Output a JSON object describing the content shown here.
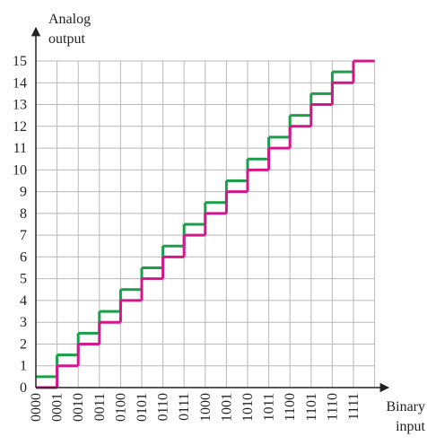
{
  "chart_data": {
    "type": "step",
    "y_label": [
      "Analog",
      "output"
    ],
    "x_label": [
      "Binary",
      "input"
    ],
    "categories": [
      "0000",
      "0001",
      "0010",
      "0011",
      "0100",
      "0101",
      "0110",
      "0111",
      "1000",
      "1001",
      "1010",
      "1011",
      "1100",
      "1101",
      "1110",
      "1111"
    ],
    "series": [
      {
        "color": "#1a9e4a",
        "values": [
          0.5,
          1.5,
          2.5,
          3.5,
          4.5,
          5.5,
          6.5,
          7.5,
          8.5,
          9.5,
          10.5,
          11.5,
          12.5,
          13.5,
          14.5,
          15
        ]
      },
      {
        "color": "#d4168c",
        "values": [
          0,
          1,
          2,
          3,
          4,
          5,
          6,
          7,
          8,
          9,
          10,
          11,
          12,
          13,
          14,
          15
        ]
      }
    ],
    "ylim": [
      0,
      15
    ],
    "yticks": [
      0,
      1,
      2,
      3,
      4,
      5,
      6,
      7,
      8,
      9,
      10,
      11,
      12,
      13,
      14,
      15
    ],
    "grid": true
  }
}
